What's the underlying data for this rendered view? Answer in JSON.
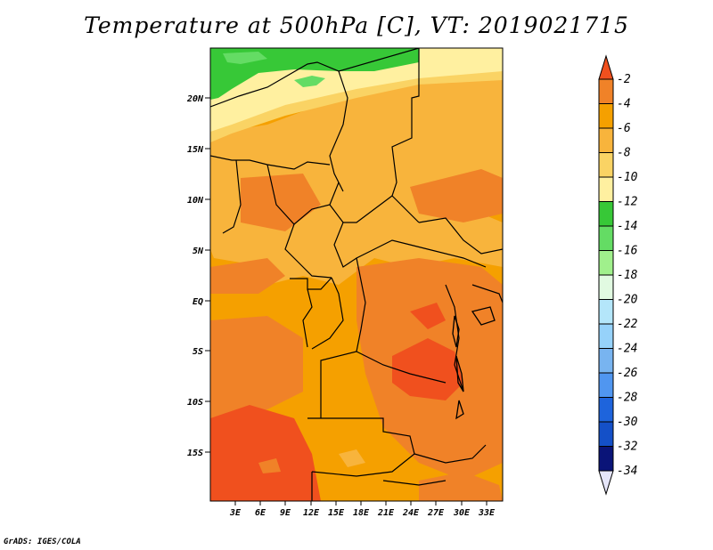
{
  "title": "Temperature at 500hPa [C], VT: 2019021715",
  "credit": "GrADS: IGES/COLA",
  "map": {
    "lat_ticks": [
      "20N",
      "15N",
      "10N",
      "5N",
      "EQ",
      "5S",
      "10S",
      "15S"
    ],
    "lon_ticks": [
      "3E",
      "6E",
      "9E",
      "12E",
      "15E",
      "18E",
      "21E",
      "24E",
      "27E",
      "30E",
      "33E"
    ]
  },
  "colorbar": {
    "labels": [
      "-2",
      "-4",
      "-6",
      "-8",
      "-10",
      "-12",
      "-14",
      "-16",
      "-18",
      "-20",
      "-22",
      "-24",
      "-26",
      "-28",
      "-30",
      "-32",
      "-34"
    ],
    "colors": [
      "#f0501e",
      "#f08228",
      "#f5a000",
      "#f8b43c",
      "#fad364",
      "#fff0a0",
      "#37c837",
      "#64dc64",
      "#a0f08c",
      "#e1fae1",
      "#b4e6fa",
      "#96d2fa",
      "#78b4f0",
      "#5096f0",
      "#1e64dc",
      "#1450c8",
      "#0a1478",
      "#e6e6fa"
    ]
  },
  "style": {
    "colors": {
      "orange": "#f5a000",
      "light_orange": "#f8b43c",
      "dark_orange": "#f08228",
      "red_orange": "#f0501e",
      "pale_yellow": "#fad364",
      "cream": "#fff0a0",
      "green": "#37c837",
      "light_green": "#64dc64"
    }
  }
}
